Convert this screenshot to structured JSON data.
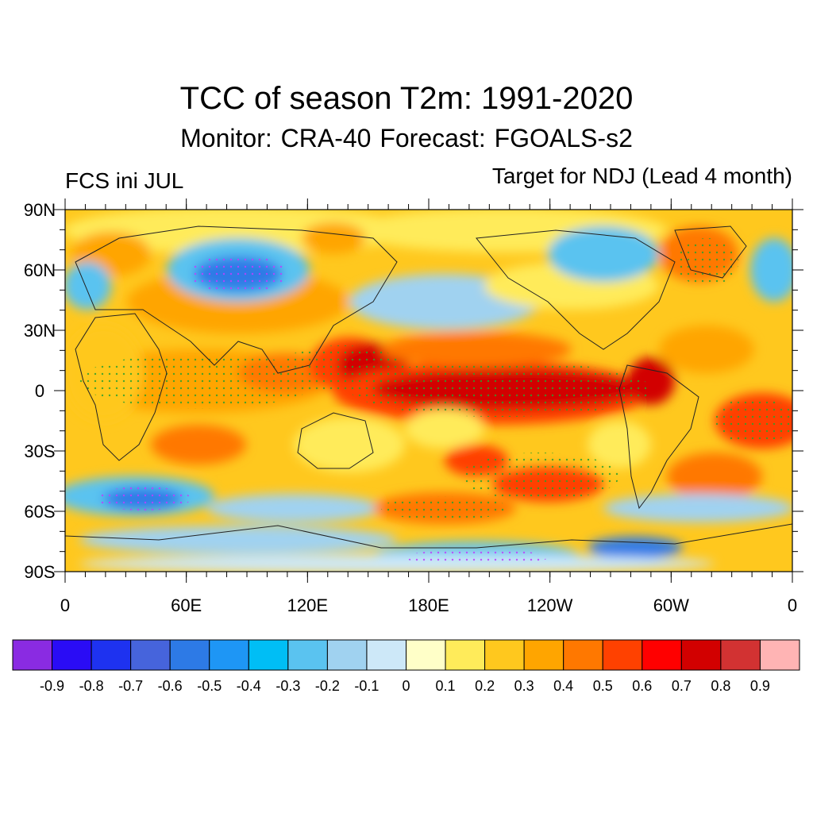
{
  "title": "TCC of season T2m: 1991-2020",
  "subtitle": "Monitor: CRA-40   Forecast: FGOALS-s2",
  "left_label": "FCS ini JUL",
  "right_label": "Target for NDJ (Lead 4 month)",
  "map": {
    "lon_range": [
      0,
      360
    ],
    "lat_range": [
      -90,
      90
    ],
    "lat_ticks": [
      "90N",
      "60N",
      "30N",
      "0",
      "30S",
      "60S",
      "90S"
    ],
    "lon_ticks": [
      "0",
      "60E",
      "120E",
      "180E",
      "120W",
      "60W",
      "0"
    ],
    "stippling": "significant correlation marked with dots"
  },
  "colorbar": {
    "colors": [
      "#8a2be2",
      "#2a0cf5",
      "#1e32f0",
      "#4664dc",
      "#2d7ae6",
      "#1e96f5",
      "#00bef5",
      "#5ac3f0",
      "#a0d2f0",
      "#cde8f8",
      "#ffffc8",
      "#ffeb5a",
      "#ffc81e",
      "#ffa500",
      "#ff7800",
      "#ff4100",
      "#ff0000",
      "#d20000",
      "#d23232",
      "#ffb4b4"
    ],
    "labels": [
      "-0.9",
      "-0.8",
      "-0.7",
      "-0.6",
      "-0.5",
      "-0.4",
      "-0.3",
      "-0.2",
      "-0.1",
      "0",
      "0.1",
      "0.2",
      "0.3",
      "0.4",
      "0.5",
      "0.6",
      "0.7",
      "0.8",
      "0.9"
    ]
  }
}
